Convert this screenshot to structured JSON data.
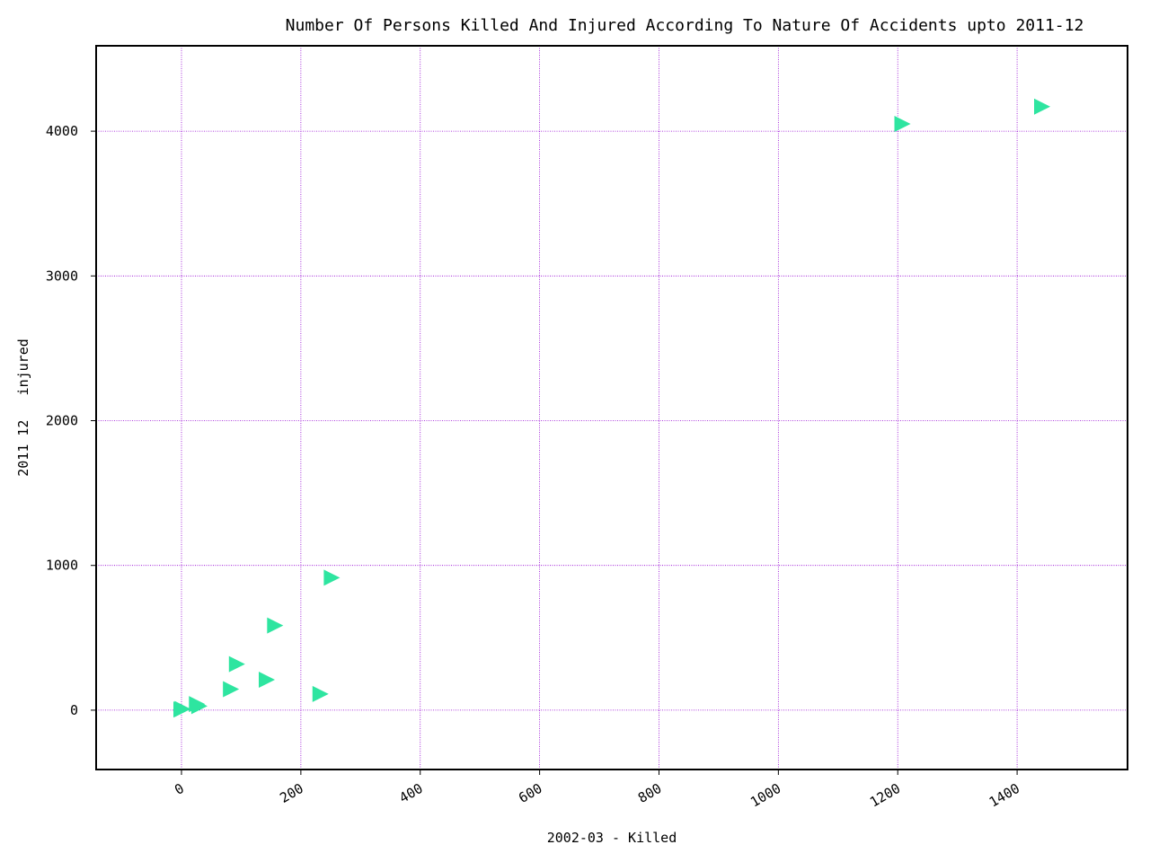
{
  "chart_data": {
    "type": "scatter",
    "title": "Number Of Persons Killed And Injured According To Nature Of Accidents upto 2011-12",
    "xlabel": "2002-03 - Killed",
    "ylabel": "2011 12   injured",
    "xlim": [
      -143,
      1585
    ],
    "ylim": [
      -410,
      4590
    ],
    "xticks": [
      0,
      200,
      400,
      600,
      800,
      1000,
      1200,
      1400
    ],
    "yticks": [
      0,
      1000,
      2000,
      3000,
      4000
    ],
    "grid": true,
    "marker": "triangle-right",
    "colors": {
      "marker": "#2ee5a0",
      "grid": "#9400d3",
      "axes": "#000000"
    },
    "series": [
      {
        "points": [
          {
            "x": 0,
            "y": 5
          },
          {
            "x": 2,
            "y": 8
          },
          {
            "x": 26,
            "y": 42
          },
          {
            "x": 30,
            "y": 28
          },
          {
            "x": 83,
            "y": 145
          },
          {
            "x": 93,
            "y": 318
          },
          {
            "x": 143,
            "y": 210
          },
          {
            "x": 157,
            "y": 585
          },
          {
            "x": 233,
            "y": 112
          },
          {
            "x": 252,
            "y": 915
          },
          {
            "x": 1208,
            "y": 4050
          },
          {
            "x": 1442,
            "y": 4170
          }
        ]
      }
    ]
  }
}
